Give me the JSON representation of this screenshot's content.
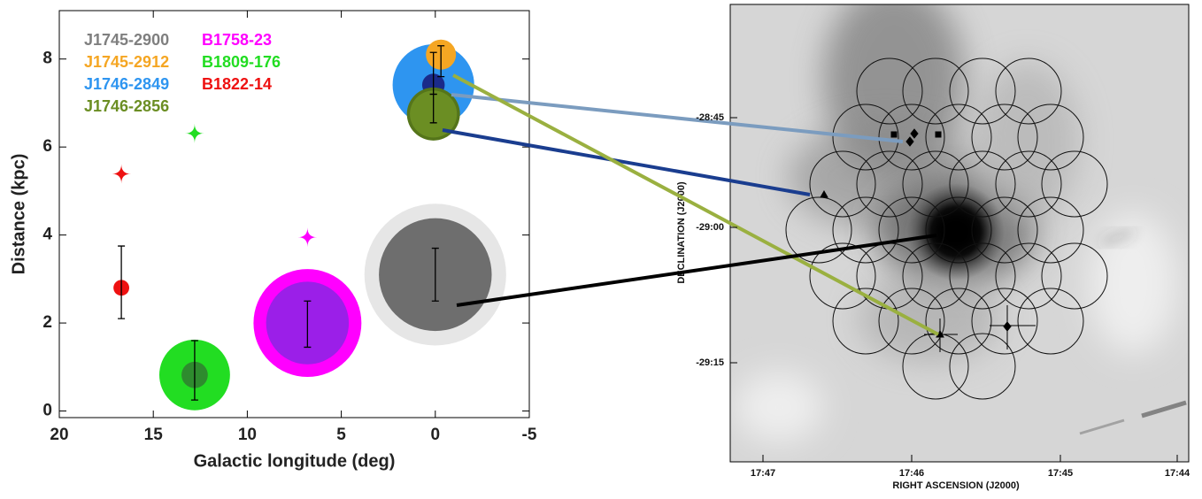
{
  "chart_data": {
    "type": "scatter",
    "x_label": "Galactic longitude (deg)",
    "y_label": "Distance (kpc)",
    "xlim": [
      20,
      -5
    ],
    "xticks": [
      20,
      15,
      10,
      5,
      0,
      -5
    ],
    "ylim": [
      -0.15,
      9.1
    ],
    "yticks": [
      0,
      2,
      4,
      6,
      8
    ],
    "series": [
      {
        "name": "J1745-2900",
        "color": "#7f7f7f",
        "x": 0,
        "y": 3.1,
        "y_low": 2.5,
        "y_high": 3.7,
        "halo": 3.77,
        "halo_color": "#e6e6e6",
        "core": 3.0,
        "core_color": "#6e6e6e"
      },
      {
        "name": "J1745-2912",
        "color": "#f5a623",
        "x": -0.3,
        "y": 8.1,
        "y_low": 7.6,
        "y_high": 8.3,
        "halo": 0.8,
        "halo_color": "#f5a623"
      },
      {
        "name": "J1746-2849",
        "color": "#2e95f0",
        "x": 0.1,
        "y": 7.41,
        "y_low": 7.2,
        "y_high": 8.15,
        "halo": 2.17,
        "halo_color": "#2e95f0",
        "core": 0.6,
        "core_color": "#1a2a8a"
      },
      {
        "name": "J1746-2856",
        "color": "#6b8e23",
        "x": 0.1,
        "y": 6.75,
        "y_low": 6.55,
        "y_high": 7.2,
        "halo": 1.41,
        "halo_color": "#55751a",
        "core": 1.25,
        "core_color": "#6b8e23"
      },
      {
        "name": "B1758-23",
        "color": "#ff00ff",
        "x": 6.8,
        "y": 2.0,
        "y_low": 1.45,
        "y_high": 2.5,
        "halo": 2.87,
        "halo_color": "#ff00ff",
        "core": 2.2,
        "core_color": "#9b1fe8",
        "star_y": 3.95
      },
      {
        "name": "B1809-176",
        "color": "#22dd22",
        "x": 12.8,
        "y": 0.82,
        "y_low": 0.25,
        "y_high": 1.6,
        "halo": 1.88,
        "halo_color": "#22dd22",
        "core": 0.7,
        "core_color": "#2e8b2e",
        "star_y": 6.31
      },
      {
        "name": "B1822-14",
        "color": "#ee1111",
        "x": 16.7,
        "y": 2.8,
        "y_low": 2.1,
        "y_high": 3.75,
        "halo": 0.42,
        "halo_color": "#ee1111",
        "star_y": 5.39
      }
    ]
  },
  "sky_image": {
    "x_label": "RIGHT ASCENSION (J2000)",
    "y_label": "DECLINATION (J2000)",
    "x_tick_labels": [
      "17:47",
      "17:46",
      "17:45",
      "17:44"
    ],
    "y_tick_labels": [
      "-28:45",
      "-29:00",
      "-29:15"
    ]
  }
}
